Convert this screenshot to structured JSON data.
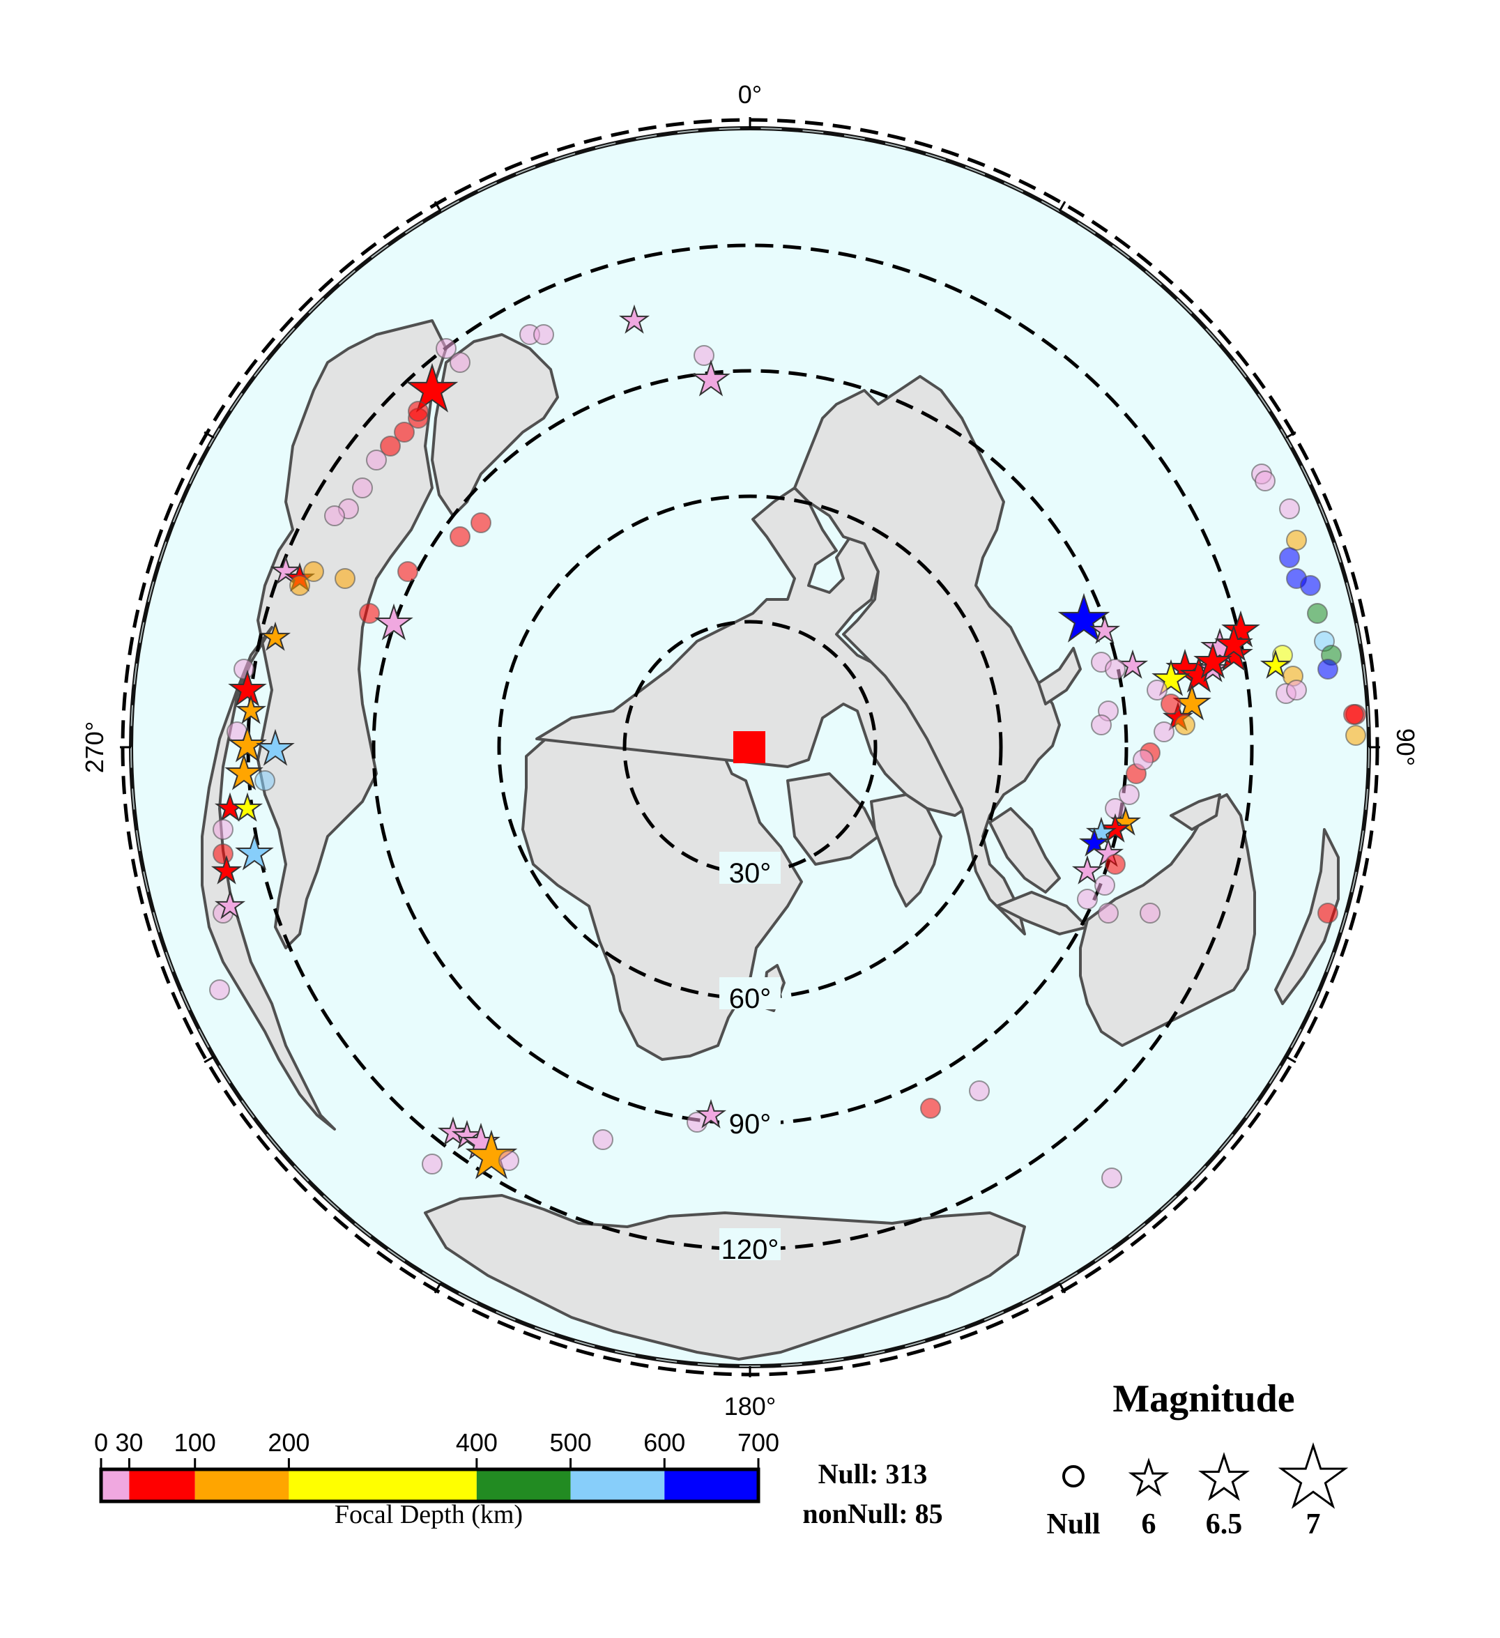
{
  "map": {
    "projection": "azimuthal-equidistant",
    "center_marker": {
      "shape": "square",
      "color": "#ff0000"
    },
    "ocean_color": "#e8fcfd",
    "land_color": "#e2e3e3",
    "coast_color": "#505050",
    "azimuth_labels": {
      "top": "0°",
      "right": "90°",
      "bottom": "180°",
      "left": "270°"
    },
    "distance_rings": [
      {
        "label": "30°",
        "deg": 30
      },
      {
        "label": "60°",
        "deg": 60
      },
      {
        "label": "90°",
        "deg": 90
      },
      {
        "label": "120°",
        "deg": 120
      },
      {
        "label": "",
        "deg": 150
      }
    ]
  },
  "colorbar": {
    "title": "Focal Depth (km)",
    "ticks": [
      "0",
      "30",
      "100",
      "200",
      "400",
      "500",
      "600",
      "700"
    ],
    "tick_values": [
      0,
      30,
      100,
      200,
      400,
      500,
      600,
      700
    ],
    "segments": [
      {
        "from": 0,
        "to": 30,
        "color": "#f0a8e0"
      },
      {
        "from": 30,
        "to": 100,
        "color": "#ff0000"
      },
      {
        "from": 100,
        "to": 200,
        "color": "#ffa500"
      },
      {
        "from": 200,
        "to": 400,
        "color": "#ffff00"
      },
      {
        "from": 400,
        "to": 500,
        "color": "#228b22"
      },
      {
        "from": 500,
        "to": 600,
        "color": "#87cefa"
      },
      {
        "from": 600,
        "to": 700,
        "color": "#0000ff"
      }
    ]
  },
  "counts": {
    "null_label": "Null: 313",
    "nonnull_label": "nonNull: 85"
  },
  "legend": {
    "title": "Magnitude",
    "items": [
      {
        "label": "Null",
        "symbol": "circle"
      },
      {
        "label": "6",
        "symbol": "star",
        "mag": 6
      },
      {
        "label": "6.5",
        "symbol": "star",
        "mag": 6.5
      },
      {
        "label": "7",
        "symbol": "star",
        "mag": 7
      }
    ]
  }
}
